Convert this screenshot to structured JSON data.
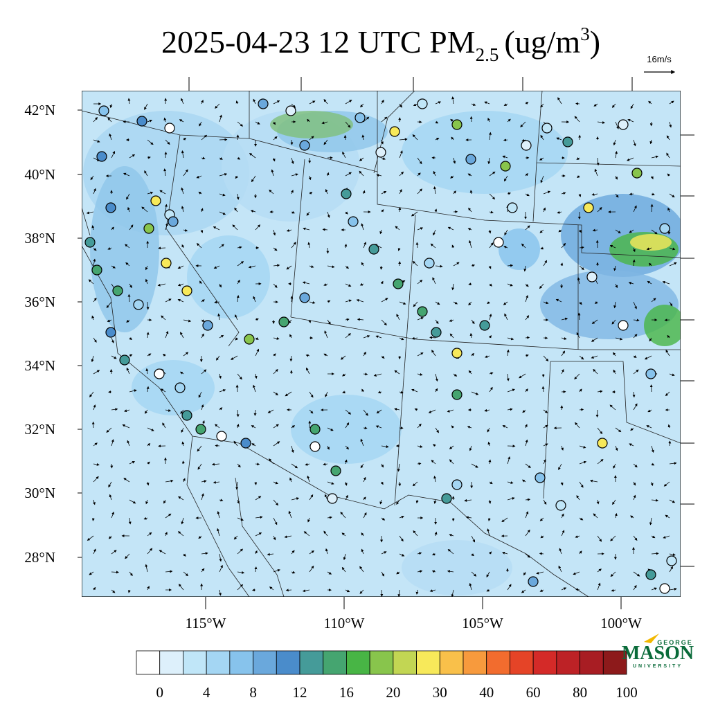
{
  "title": {
    "main": "2025-04-23 12 UTC PM",
    "sub": "2.5",
    "unit": "(ug/m",
    "sup": "3",
    "close": ")"
  },
  "vector_scale": "16m/s",
  "lat_labels": [
    "42°N",
    "40°N",
    "38°N",
    "36°N",
    "34°N",
    "32°N",
    "30°N",
    "28°N"
  ],
  "lon_labels": [
    "115°W",
    "110°W",
    "105°W",
    "100°W"
  ],
  "colorbar_labels": [
    "0",
    "4",
    "8",
    "12",
    "16",
    "20",
    "30",
    "40",
    "60",
    "80",
    "100"
  ],
  "logo": {
    "top": "GEORGE",
    "main": "MASON",
    "bottom": "UNIVERSITY"
  }
}
